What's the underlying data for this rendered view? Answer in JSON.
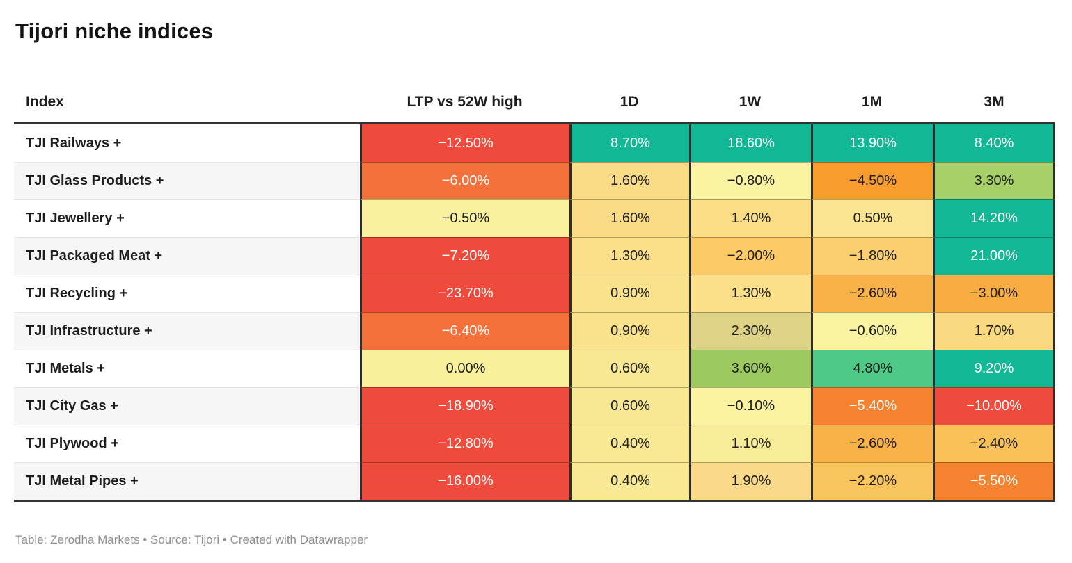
{
  "title": "Tijori niche indices",
  "footer": "Table: Zerodha Markets • Source: Tijori • Created with Datawrapper",
  "colors": {
    "header_border": "#333333",
    "column_divider": "#2d2d2d",
    "zebra_row": "#f6f6f6",
    "footer_text": "#8e8e8e",
    "positive_strong": "#12b795",
    "negative_strong": "#ee4b3c"
  },
  "chart_data": {
    "type": "table",
    "title": "Tijori niche indices",
    "columns": [
      "Index",
      "LTP vs 52W high",
      "1D",
      "1W",
      "1M",
      "3M"
    ],
    "rows": [
      {
        "index": "TJI Railways +",
        "cells": [
          {
            "value": "−12.50%",
            "bg": "#ee4b3c",
            "fg": "#ffffff"
          },
          {
            "value": "8.70%",
            "bg": "#12b795",
            "fg": "#ffffff"
          },
          {
            "value": "18.60%",
            "bg": "#12b795",
            "fg": "#ffffff"
          },
          {
            "value": "13.90%",
            "bg": "#12b795",
            "fg": "#ffffff"
          },
          {
            "value": "8.40%",
            "bg": "#12b795",
            "fg": "#ffffff"
          }
        ]
      },
      {
        "index": "TJI Glass Products +",
        "cells": [
          {
            "value": "−6.00%",
            "bg": "#f3703a",
            "fg": "#ffffff"
          },
          {
            "value": "1.60%",
            "bg": "#fbdc86",
            "fg": "#1f1f1f"
          },
          {
            "value": "−0.80%",
            "bg": "#faf3a1",
            "fg": "#1f1f1f"
          },
          {
            "value": "−4.50%",
            "bg": "#f99d2e",
            "fg": "#1f1f1f"
          },
          {
            "value": "3.30%",
            "bg": "#a8d068",
            "fg": "#1f1f1f"
          }
        ]
      },
      {
        "index": "TJI Jewellery +",
        "cells": [
          {
            "value": "−0.50%",
            "bg": "#f9f0a0",
            "fg": "#1f1f1f"
          },
          {
            "value": "1.60%",
            "bg": "#fbdc86",
            "fg": "#1f1f1f"
          },
          {
            "value": "1.40%",
            "bg": "#fbdd86",
            "fg": "#1f1f1f"
          },
          {
            "value": "0.50%",
            "bg": "#fbe590",
            "fg": "#1f1f1f"
          },
          {
            "value": "14.20%",
            "bg": "#12b795",
            "fg": "#ffffff"
          }
        ]
      },
      {
        "index": "TJI Packaged Meat +",
        "cells": [
          {
            "value": "−7.20%",
            "bg": "#ee4b3c",
            "fg": "#ffffff"
          },
          {
            "value": "1.30%",
            "bg": "#fbe089",
            "fg": "#1f1f1f"
          },
          {
            "value": "−2.00%",
            "bg": "#fbca67",
            "fg": "#1f1f1f"
          },
          {
            "value": "−1.80%",
            "bg": "#fbcf70",
            "fg": "#1f1f1f"
          },
          {
            "value": "21.00%",
            "bg": "#12b795",
            "fg": "#ffffff"
          }
        ]
      },
      {
        "index": "TJI Recycling +",
        "cells": [
          {
            "value": "−23.70%",
            "bg": "#ee4b3c",
            "fg": "#ffffff"
          },
          {
            "value": "0.90%",
            "bg": "#fae18c",
            "fg": "#1f1f1f"
          },
          {
            "value": "1.30%",
            "bg": "#fbe089",
            "fg": "#1f1f1f"
          },
          {
            "value": "−2.60%",
            "bg": "#f9b149",
            "fg": "#1f1f1f"
          },
          {
            "value": "−3.00%",
            "bg": "#f9ac41",
            "fg": "#1f1f1f"
          }
        ]
      },
      {
        "index": "TJI Infrastructure +",
        "cells": [
          {
            "value": "−6.40%",
            "bg": "#f3703a",
            "fg": "#ffffff"
          },
          {
            "value": "0.90%",
            "bg": "#fae18c",
            "fg": "#1f1f1f"
          },
          {
            "value": "2.30%",
            "bg": "#ddd286",
            "fg": "#1f1f1f"
          },
          {
            "value": "−0.60%",
            "bg": "#faf4a2",
            "fg": "#1f1f1f"
          },
          {
            "value": "1.70%",
            "bg": "#fbd981",
            "fg": "#1f1f1f"
          }
        ]
      },
      {
        "index": "TJI Metals +",
        "cells": [
          {
            "value": "0.00%",
            "bg": "#f9f09c",
            "fg": "#1f1f1f"
          },
          {
            "value": "0.60%",
            "bg": "#f9e893",
            "fg": "#1f1f1f"
          },
          {
            "value": "3.60%",
            "bg": "#9cca5e",
            "fg": "#1f1f1f"
          },
          {
            "value": "4.80%",
            "bg": "#4fca86",
            "fg": "#1f1f1f"
          },
          {
            "value": "9.20%",
            "bg": "#12b795",
            "fg": "#ffffff"
          }
        ]
      },
      {
        "index": "TJI City Gas +",
        "cells": [
          {
            "value": "−18.90%",
            "bg": "#ee4b3c",
            "fg": "#ffffff"
          },
          {
            "value": "0.60%",
            "bg": "#f9e893",
            "fg": "#1f1f1f"
          },
          {
            "value": "−0.10%",
            "bg": "#faf2a0",
            "fg": "#1f1f1f"
          },
          {
            "value": "−5.40%",
            "bg": "#f5822e",
            "fg": "#ffffff"
          },
          {
            "value": "−10.00%",
            "bg": "#ee4b3c",
            "fg": "#ffffff"
          }
        ]
      },
      {
        "index": "TJI Plywood +",
        "cells": [
          {
            "value": "−12.80%",
            "bg": "#ee4b3c",
            "fg": "#ffffff"
          },
          {
            "value": "0.40%",
            "bg": "#f9e994",
            "fg": "#1f1f1f"
          },
          {
            "value": "1.10%",
            "bg": "#f9ec98",
            "fg": "#1f1f1f"
          },
          {
            "value": "−2.60%",
            "bg": "#f9b149",
            "fg": "#1f1f1f"
          },
          {
            "value": "−2.40%",
            "bg": "#fac159",
            "fg": "#1f1f1f"
          }
        ]
      },
      {
        "index": "TJI Metal Pipes +",
        "cells": [
          {
            "value": "−16.00%",
            "bg": "#ee4b3c",
            "fg": "#ffffff"
          },
          {
            "value": "0.40%",
            "bg": "#f9e994",
            "fg": "#1f1f1f"
          },
          {
            "value": "1.90%",
            "bg": "#fad98a",
            "fg": "#1f1f1f"
          },
          {
            "value": "−2.20%",
            "bg": "#fac45c",
            "fg": "#1f1f1f"
          },
          {
            "value": "−5.50%",
            "bg": "#f5822e",
            "fg": "#ffffff"
          }
        ]
      }
    ]
  }
}
